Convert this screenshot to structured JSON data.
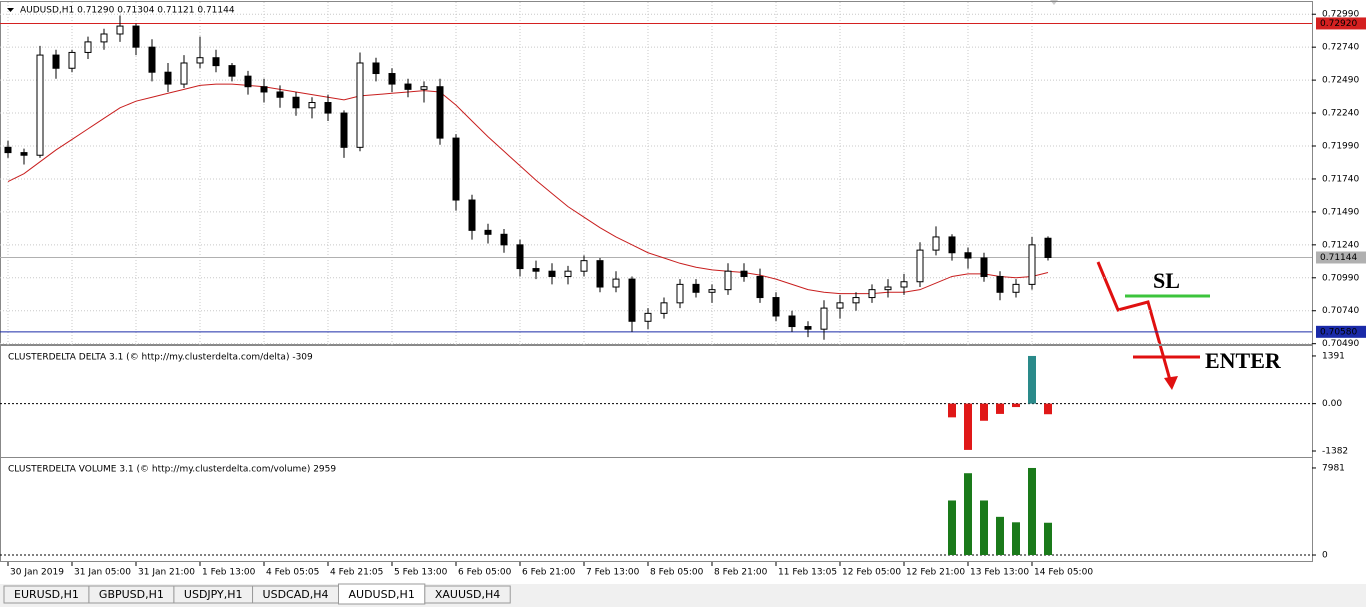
{
  "chart_data": [
    {
      "type": "candlestick",
      "title": "AUDUSD,H1  0.71290 0.71304 0.71121 0.71144",
      "xlim": [
        -0.5,
        81.5
      ],
      "xticks": [
        {
          "value": 0,
          "label": "30 Jan 2019"
        },
        {
          "value": 4,
          "label": "31 Jan 05:00"
        },
        {
          "value": 8,
          "label": "31 Jan 21:00"
        },
        {
          "value": 12,
          "label": "1 Feb 13:00"
        },
        {
          "value": 16,
          "label": "4 Feb 05:05"
        },
        {
          "value": 20,
          "label": "4 Feb 21:05"
        },
        {
          "value": 24,
          "label": "5 Feb 13:00"
        },
        {
          "value": 28,
          "label": "6 Feb 05:00"
        },
        {
          "value": 32,
          "label": "6 Feb 21:00"
        },
        {
          "value": 36,
          "label": "7 Feb 13:00"
        },
        {
          "value": 40,
          "label": "8 Feb 05:00"
        },
        {
          "value": 44,
          "label": "8 Feb 21:00"
        },
        {
          "value": 48,
          "label": "11 Feb 13:05"
        },
        {
          "value": 52,
          "label": "12 Feb 05:00"
        },
        {
          "value": 56,
          "label": "12 Feb 21:00"
        },
        {
          "value": 60,
          "label": "13 Feb 13:00"
        },
        {
          "value": 64,
          "label": "14 Feb 05:00"
        }
      ],
      "ylim": [
        0.7048,
        0.7306
      ],
      "yticks": [
        {
          "value": 0.7299,
          "label": "0.72990"
        },
        {
          "value": 0.7274,
          "label": "0.72740"
        },
        {
          "value": 0.7249,
          "label": "0.72490"
        },
        {
          "value": 0.7224,
          "label": "0.72240"
        },
        {
          "value": 0.7199,
          "label": "0.71990"
        },
        {
          "value": 0.7174,
          "label": "0.71740"
        },
        {
          "value": 0.7149,
          "label": "0.71490"
        },
        {
          "value": 0.7124,
          "label": "0.71240"
        },
        {
          "value": 0.7099,
          "label": "0.70990"
        },
        {
          "value": 0.7074,
          "label": "0.70740"
        },
        {
          "value": 0.7049,
          "label": "0.70490"
        }
      ],
      "grid": true,
      "up_color": "#ffffff",
      "down_color": "#000000",
      "ohlc": [
        [
          0.7198,
          0.7203,
          0.719,
          0.7194
        ],
        [
          0.7194,
          0.7197,
          0.7185,
          0.7192
        ],
        [
          0.7192,
          0.7275,
          0.719,
          0.7268
        ],
        [
          0.7268,
          0.7272,
          0.725,
          0.7258
        ],
        [
          0.7258,
          0.7272,
          0.7255,
          0.727
        ],
        [
          0.727,
          0.7282,
          0.7265,
          0.7278
        ],
        [
          0.7278,
          0.7288,
          0.7272,
          0.7284
        ],
        [
          0.7284,
          0.7298,
          0.7278,
          0.729
        ],
        [
          0.729,
          0.7292,
          0.7268,
          0.7274
        ],
        [
          0.7274,
          0.728,
          0.7248,
          0.7255
        ],
        [
          0.7255,
          0.7262,
          0.724,
          0.7246
        ],
        [
          0.7246,
          0.7268,
          0.7243,
          0.7262
        ],
        [
          0.7262,
          0.7282,
          0.7258,
          0.7266
        ],
        [
          0.7266,
          0.7272,
          0.7255,
          0.726
        ],
        [
          0.726,
          0.7262,
          0.7248,
          0.7252
        ],
        [
          0.7252,
          0.7256,
          0.7238,
          0.7244
        ],
        [
          0.7244,
          0.725,
          0.7232,
          0.724
        ],
        [
          0.724,
          0.7245,
          0.7228,
          0.7236
        ],
        [
          0.7236,
          0.724,
          0.7222,
          0.7228
        ],
        [
          0.7228,
          0.7236,
          0.722,
          0.7232
        ],
        [
          0.7232,
          0.7238,
          0.7218,
          0.7224
        ],
        [
          0.7224,
          0.7226,
          0.719,
          0.7198
        ],
        [
          0.7198,
          0.727,
          0.7195,
          0.7262
        ],
        [
          0.7262,
          0.7266,
          0.7248,
          0.7254
        ],
        [
          0.7254,
          0.7258,
          0.724,
          0.7246
        ],
        [
          0.7246,
          0.725,
          0.7236,
          0.7242
        ],
        [
          0.7242,
          0.7248,
          0.7232,
          0.7244
        ],
        [
          0.7244,
          0.725,
          0.72,
          0.7205
        ],
        [
          0.7205,
          0.7208,
          0.715,
          0.7158
        ],
        [
          0.7158,
          0.7162,
          0.7128,
          0.7135
        ],
        [
          0.7135,
          0.714,
          0.7125,
          0.7132
        ],
        [
          0.7132,
          0.7136,
          0.7118,
          0.7124
        ],
        [
          0.7124,
          0.7128,
          0.71,
          0.7106
        ],
        [
          0.7106,
          0.7112,
          0.7098,
          0.7104
        ],
        [
          0.7104,
          0.711,
          0.7094,
          0.71
        ],
        [
          0.71,
          0.7108,
          0.7094,
          0.7104
        ],
        [
          0.7104,
          0.7116,
          0.71,
          0.7112
        ],
        [
          0.7112,
          0.7114,
          0.7088,
          0.7092
        ],
        [
          0.7092,
          0.7104,
          0.7088,
          0.7098
        ],
        [
          0.7098,
          0.71,
          0.7058,
          0.7066
        ],
        [
          0.7066,
          0.7076,
          0.706,
          0.7072
        ],
        [
          0.7072,
          0.7084,
          0.7068,
          0.708
        ],
        [
          0.708,
          0.7098,
          0.7076,
          0.7094
        ],
        [
          0.7094,
          0.7098,
          0.7084,
          0.7088
        ],
        [
          0.7088,
          0.7094,
          0.708,
          0.709
        ],
        [
          0.709,
          0.711,
          0.7086,
          0.7104
        ],
        [
          0.7104,
          0.711,
          0.7096,
          0.71
        ],
        [
          0.71,
          0.7106,
          0.708,
          0.7084
        ],
        [
          0.7084,
          0.7088,
          0.7066,
          0.707
        ],
        [
          0.707,
          0.7074,
          0.7058,
          0.7062
        ],
        [
          0.7062,
          0.7066,
          0.7054,
          0.706
        ],
        [
          0.706,
          0.7082,
          0.7052,
          0.7076
        ],
        [
          0.7076,
          0.7086,
          0.7068,
          0.708
        ],
        [
          0.708,
          0.7088,
          0.7074,
          0.7084
        ],
        [
          0.7084,
          0.7094,
          0.708,
          0.709
        ],
        [
          0.709,
          0.7098,
          0.7084,
          0.7092
        ],
        [
          0.7092,
          0.7102,
          0.7086,
          0.7096
        ],
        [
          0.7096,
          0.7126,
          0.7092,
          0.712
        ],
        [
          0.712,
          0.7138,
          0.7116,
          0.713
        ],
        [
          0.713,
          0.7132,
          0.7112,
          0.7118
        ],
        [
          0.7118,
          0.7122,
          0.7106,
          0.7114
        ],
        [
          0.7114,
          0.7118,
          0.7096,
          0.71
        ],
        [
          0.71,
          0.7104,
          0.7082,
          0.7088
        ],
        [
          0.7088,
          0.7098,
          0.7084,
          0.7094
        ],
        [
          0.7094,
          0.713,
          0.709,
          0.7124
        ],
        [
          0.7129,
          0.71304,
          0.71121,
          0.71144
        ]
      ],
      "ma": {
        "color": "#c81e1e",
        "values": [
          0.7172,
          0.7178,
          0.7187,
          0.7196,
          0.7204,
          0.7212,
          0.722,
          0.7228,
          0.7233,
          0.7236,
          0.7239,
          0.7242,
          0.7245,
          0.7246,
          0.7246,
          0.7245,
          0.7244,
          0.7242,
          0.724,
          0.7238,
          0.7236,
          0.7234,
          0.7237,
          0.7238,
          0.7239,
          0.724,
          0.7241,
          0.724,
          0.723,
          0.7218,
          0.7206,
          0.7195,
          0.7184,
          0.7173,
          0.7163,
          0.7153,
          0.7145,
          0.7137,
          0.713,
          0.7124,
          0.7118,
          0.7114,
          0.711,
          0.7107,
          0.7105,
          0.7104,
          0.7103,
          0.7101,
          0.7098,
          0.7094,
          0.709,
          0.7088,
          0.7087,
          0.7087,
          0.7087,
          0.7088,
          0.7088,
          0.709,
          0.7095,
          0.71,
          0.7102,
          0.7102,
          0.71,
          0.7099,
          0.71,
          0.7103
        ]
      },
      "levels": [
        {
          "value": 0.7292,
          "label": "0.72920",
          "color": "#d42020"
        },
        {
          "value": 0.71144,
          "label": "0.71144",
          "color": "#b0b0b0"
        },
        {
          "value": 0.7058,
          "label": "0.70580",
          "color": "#1a2aa8"
        }
      ],
      "annotations": [
        {
          "text": "SL",
          "color": "#3cc43c"
        },
        {
          "text": "ENTER",
          "color": "#e01010"
        }
      ]
    },
    {
      "type": "bar",
      "title": "CLUSTERDELTA DELTA 3.1 (© http://my.clusterdelta.com/delta) -309",
      "xlim": [
        -0.5,
        81.5
      ],
      "ylim": [
        -1586,
        1594
      ],
      "yticks": [
        1391,
        {
          "value": 0,
          "label": "0.00"
        },
        -1382
      ],
      "pos_color": "#2a8a8a",
      "neg_color": "#e01818",
      "x": [
        59,
        60,
        61,
        62,
        63,
        64,
        65
      ],
      "values": [
        -400,
        -1350,
        -500,
        -300,
        -100,
        1391,
        -309
      ]
    },
    {
      "type": "bar",
      "title": "CLUSTERDELTA VOLUME 3.1 (© http://my.clusterdelta.com/volume) 2959",
      "xlim": [
        -0.5,
        81.5
      ],
      "ylim": [
        -640,
        8620
      ],
      "yticks": [
        7981,
        0
      ],
      "color": "#1a7a1a",
      "x": [
        59,
        60,
        61,
        62,
        63,
        64,
        65
      ],
      "values": [
        5000,
        7500,
        5000,
        3500,
        3000,
        7981,
        2959
      ]
    }
  ],
  "tabs": {
    "items": [
      "EURUSD,H1",
      "GBPUSD,H1",
      "USDJPY,H1",
      "USDCAD,H4",
      "AUDUSD,H1",
      "XAUUSD,H4"
    ],
    "active": 4
  }
}
